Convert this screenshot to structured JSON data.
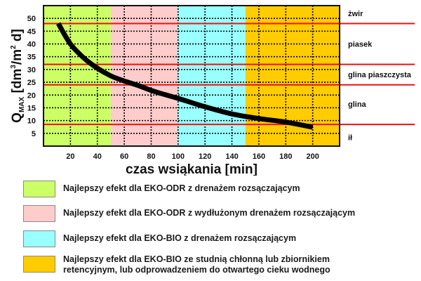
{
  "chart_data": {
    "type": "line",
    "title": "",
    "xlabel": "czas wsiąkania [min]",
    "ylabel": "Q_MAX [dm³/m² d]",
    "ylabel_parts": {
      "q": "Q",
      "sub": "MAX",
      "unit_a": " [dm",
      "sup1": "3",
      "unit_b": "/m",
      "sup2": "2",
      "unit_c": " d]"
    },
    "xlim": [
      0,
      220
    ],
    "ylim": [
      0,
      55
    ],
    "x_ticks": [
      20,
      40,
      60,
      80,
      100,
      120,
      140,
      160,
      180,
      200
    ],
    "y_ticks": [
      5,
      10,
      15,
      20,
      25,
      30,
      35,
      40,
      45,
      50
    ],
    "grid": "dotted",
    "series": [
      {
        "name": "Q_MAX",
        "color": "#000000",
        "x": [
          11,
          20,
          30,
          40,
          50,
          60,
          70,
          80,
          90,
          100,
          120,
          140,
          160,
          180,
          200
        ],
        "values": [
          48,
          40,
          34.5,
          30.5,
          27.5,
          25.5,
          23.8,
          21.8,
          20.2,
          18.7,
          15.4,
          12.6,
          10.8,
          9.4,
          7.4
        ]
      }
    ],
    "bands": [
      {
        "from": 0,
        "to": 50,
        "color": "#ccff66",
        "label": "Najlepszy efekt dla EKO-ODR z drenażem rozsączającym"
      },
      {
        "from": 50,
        "to": 100,
        "color": "#ffcccc",
        "label": "Najlepszy efekt dla EKO-ODR z wydłużonym drenażem rozsączającym"
      },
      {
        "from": 100,
        "to": 150,
        "color": "#99ffff",
        "label": "Najlepszy efekt dla EKO-BIO z drenażem rozsączającym"
      },
      {
        "from": 150,
        "to": 220,
        "color": "#ffcc00",
        "label": "Najlepszy efekt dla EKO-BIO ze studnią chłonną lub zbiornikiem retencyjnym, lub odprowadzeniem do otwartego cieku wodnego"
      }
    ],
    "reference_lines": [
      {
        "y": 48,
        "color": "#ee1111"
      },
      {
        "y": 32,
        "color": "#ee1111"
      },
      {
        "y": 24,
        "color": "#ee1111"
      },
      {
        "y": 8.5,
        "color": "#ee1111"
      }
    ],
    "soil_labels": [
      {
        "label": "żwir",
        "y": 52
      },
      {
        "label": "piasek",
        "y": 40
      },
      {
        "label": "glina piaszczysta",
        "y": 28
      },
      {
        "label": "glina",
        "y": 16.5
      },
      {
        "label": "ił",
        "y": 3.5
      }
    ],
    "legend_position": "bottom"
  },
  "legend": [
    {
      "color": "#ccff66",
      "text": "Najlepszy efekt dla EKO-ODR z drenażem rozsączającym"
    },
    {
      "color": "#ffcccc",
      "text": "Najlepszy efekt dla EKO-ODR z wydłużonym drenażem rozsączającym"
    },
    {
      "color": "#99ffff",
      "text": "Najlepszy efekt dla EKO-BIO z drenażem rozsączającym"
    },
    {
      "color": "#ffcc00",
      "text": "Najlepszy efekt dla EKO-BIO ze studnią chłonną lub zbiornikiem\nretencyjnym, lub odprowadzeniem do otwartego cieku wodnego"
    }
  ]
}
